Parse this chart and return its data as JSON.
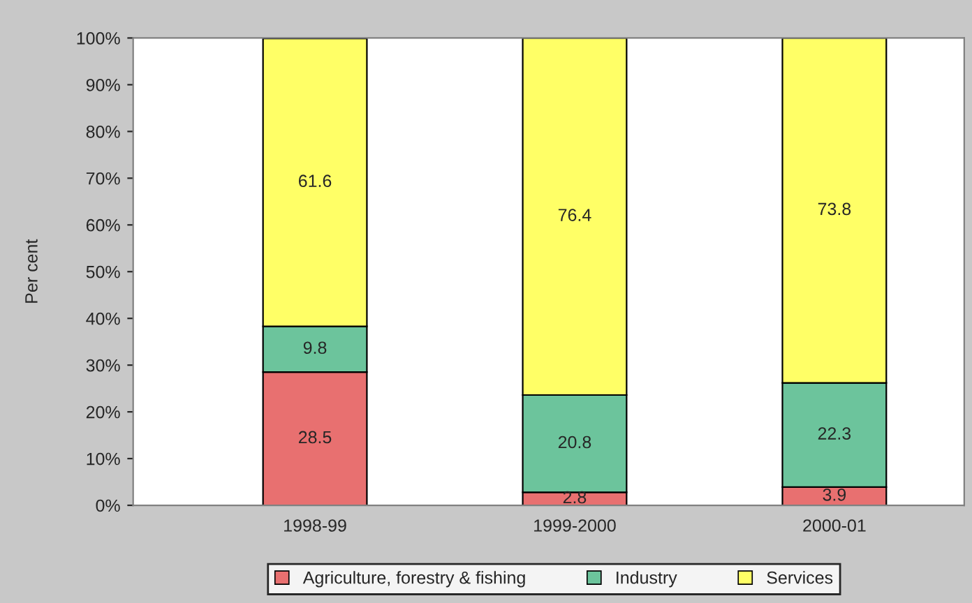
{
  "chart_data": {
    "type": "bar",
    "stacked": true,
    "ylabel": "Per cent",
    "categories": [
      "1998-99",
      "1999-2000",
      "2000-01"
    ],
    "series": [
      {
        "name": "Agriculture, forestry & fishing",
        "color": "#e87070",
        "values": [
          28.5,
          2.8,
          3.9
        ]
      },
      {
        "name": "Industry",
        "color": "#6cc49c",
        "values": [
          9.8,
          20.8,
          22.3
        ]
      },
      {
        "name": "Services",
        "color": "#ffff66",
        "values": [
          61.6,
          76.4,
          73.8
        ]
      }
    ],
    "ylim": [
      0,
      100
    ],
    "yticks": [
      {
        "value": 0,
        "label": "0%"
      },
      {
        "value": 10,
        "label": "10%"
      },
      {
        "value": 20,
        "label": "20%"
      },
      {
        "value": 30,
        "label": "30%"
      },
      {
        "value": 40,
        "label": "40%"
      },
      {
        "value": 50,
        "label": "50%"
      },
      {
        "value": 60,
        "label": "60%"
      },
      {
        "value": 70,
        "label": "70%"
      },
      {
        "value": 80,
        "label": "80%"
      },
      {
        "value": 90,
        "label": "90%"
      },
      {
        "value": 100,
        "label": "100%"
      }
    ],
    "data_labels": true,
    "legend": "bottom",
    "grid": false
  }
}
